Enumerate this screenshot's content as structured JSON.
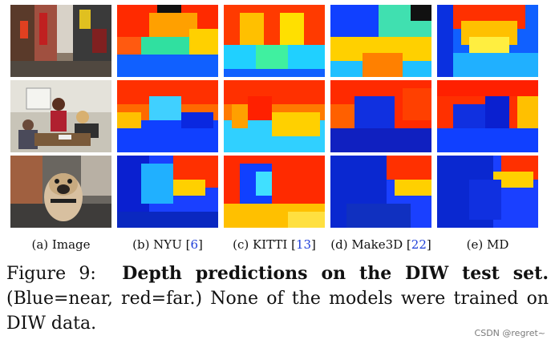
{
  "columns": [
    {
      "label": "(a) Image",
      "ref": ""
    },
    {
      "label": "(b) NYU [",
      "ref": "6",
      "suffix": "]"
    },
    {
      "label": "(c) KITTI [",
      "ref": "13",
      "suffix": "]"
    },
    {
      "label": "(d) Make3D [",
      "ref": "22",
      "suffix": "]"
    },
    {
      "label": "(e) MD",
      "ref": ""
    }
  ],
  "rows": [
    "street-scene",
    "office-scene",
    "pug-scene"
  ],
  "caption": {
    "figure_label": "Figure 9:",
    "bold_title": "Depth predictions on the DIW test set.",
    "body": "(Blue=near, red=far.) None of the models were trained on DIW data."
  },
  "watermark": "CSDN @regret~",
  "colors": {
    "near": "#1030d0",
    "far": "#e02010",
    "ref_link": "#1f3fd8"
  }
}
